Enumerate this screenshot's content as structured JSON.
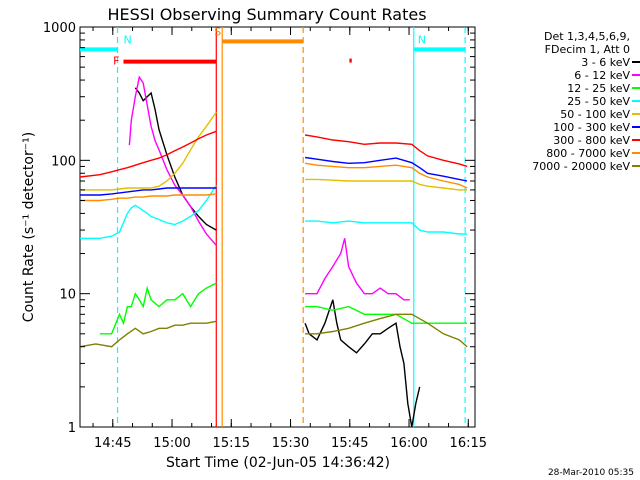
{
  "chart_data": {
    "type": "line",
    "title": "HESSI Observing Summary Count Rates",
    "xlabel": "Start Time (02-Jun-05 14:36:42)",
    "ylabel": "Count Rate (s⁻¹ detector⁻¹)",
    "yscale": "log",
    "ylim": [
      1,
      1000
    ],
    "xlim_minutes_since_start": [
      0,
      100
    ],
    "x_ticks": [
      {
        "label": "14:45",
        "minute": 8.3
      },
      {
        "label": "15:00",
        "minute": 23.3
      },
      {
        "label": "15:15",
        "minute": 38.3
      },
      {
        "label": "15:30",
        "minute": 53.3
      },
      {
        "label": "15:45",
        "minute": 68.3
      },
      {
        "label": "16:00",
        "minute": 83.3
      },
      {
        "label": "16:15",
        "minute": 98.3
      }
    ],
    "y_ticks": [
      {
        "label": "1",
        "value": 1
      },
      {
        "label": "10",
        "value": 10
      },
      {
        "label": "100",
        "value": 100
      },
      {
        "label": "1000",
        "value": 1000
      }
    ],
    "legend_header": [
      "Det 1,3,4,5,6,9,",
      "FDecim 1, Att 0"
    ],
    "series": [
      {
        "name": "3 - 6 keV",
        "color": "#000000",
        "x": [
          14,
          15,
          16,
          17,
          18,
          19,
          20,
          22,
          24,
          26,
          28,
          30,
          32,
          34.5,
          57,
          58,
          60,
          62,
          64,
          65,
          66,
          68,
          70,
          72,
          74,
          76,
          78,
          80,
          81,
          82,
          83,
          84,
          85,
          86
        ],
        "values": [
          350,
          320,
          280,
          300,
          320,
          240,
          170,
          110,
          75,
          55,
          45,
          38,
          33,
          30,
          6,
          5,
          4.5,
          6,
          9,
          6,
          4.5,
          4,
          3.6,
          4.2,
          5,
          5,
          5.5,
          6,
          4,
          3,
          1.5,
          1,
          1.5,
          2
        ]
      },
      {
        "name": "6 - 12 keV",
        "color": "#ff00ff",
        "x": [
          12.5,
          13,
          14,
          15,
          16,
          17,
          18,
          19,
          20,
          22,
          24,
          26,
          28,
          30,
          32,
          34.5,
          57,
          60,
          62,
          64,
          66,
          67,
          68,
          70,
          72,
          74,
          76,
          78,
          80,
          82,
          83.5
        ],
        "values": [
          130,
          200,
          300,
          420,
          380,
          260,
          180,
          140,
          120,
          85,
          65,
          55,
          45,
          35,
          28,
          23,
          10,
          10,
          13,
          16,
          20,
          26,
          16,
          12,
          10,
          10,
          11,
          10,
          10,
          9,
          9
        ]
      },
      {
        "name": "12 - 25 keV",
        "color": "#00ff00",
        "x": [
          5,
          8,
          10,
          11,
          12,
          13,
          14,
          15,
          16,
          17,
          18,
          20,
          22,
          24,
          26,
          28,
          30,
          32,
          34.5,
          57,
          60,
          64,
          68,
          72,
          76,
          80,
          84,
          88,
          92,
          96,
          98
        ],
        "values": [
          5,
          5,
          7,
          6,
          8,
          8,
          10,
          9,
          8,
          11,
          9,
          8,
          9,
          9,
          10,
          8,
          10,
          11,
          12,
          8,
          8,
          7.5,
          8,
          7,
          7,
          7,
          6,
          6,
          6,
          6,
          6
        ]
      },
      {
        "name": "25 - 50 keV",
        "color": "#00ffff",
        "x": [
          0,
          5,
          8,
          10,
          11,
          12,
          13,
          14,
          15,
          16,
          17,
          18,
          20,
          22,
          24,
          26,
          28,
          30,
          32,
          34.5,
          57,
          60,
          64,
          68,
          72,
          76,
          80,
          84,
          86,
          88,
          92,
          96,
          98
        ],
        "values": [
          26,
          26,
          27,
          29,
          34,
          40,
          44,
          46,
          44,
          42,
          40,
          38,
          36,
          34,
          33,
          35,
          38,
          42,
          50,
          65,
          35,
          35,
          34,
          35,
          34,
          34,
          34,
          34,
          30,
          29,
          29,
          28,
          28
        ]
      },
      {
        "name": "50 - 100 keV",
        "color": "#e0c000",
        "x": [
          0,
          5,
          8,
          10,
          12,
          14,
          16,
          18,
          20,
          22,
          24,
          26,
          28,
          30,
          32,
          34.5,
          57,
          60,
          64,
          68,
          72,
          76,
          80,
          84,
          86,
          88,
          92,
          96,
          98
        ],
        "values": [
          60,
          60,
          60,
          61,
          62,
          62,
          62,
          62,
          64,
          70,
          80,
          95,
          120,
          150,
          180,
          230,
          72,
          72,
          71,
          70,
          70,
          70,
          70,
          70,
          66,
          64,
          62,
          60,
          60
        ]
      },
      {
        "name": "100 - 300 keV",
        "color": "#0000ff",
        "x": [
          0,
          5,
          8,
          10,
          12,
          14,
          16,
          18,
          20,
          22,
          24,
          26,
          28,
          30,
          32,
          34.5,
          57,
          60,
          64,
          68,
          72,
          76,
          80,
          84,
          86,
          88,
          92,
          96,
          98
        ],
        "values": [
          55,
          55,
          56,
          57,
          58,
          59,
          60,
          60,
          61,
          62,
          62,
          62,
          62,
          62,
          62,
          62,
          105,
          102,
          98,
          95,
          96,
          100,
          104,
          96,
          88,
          80,
          76,
          72,
          70
        ]
      },
      {
        "name": "300 - 800 keV",
        "color": "#ff0000",
        "x": [
          0,
          5,
          8,
          10,
          12,
          14,
          16,
          18,
          20,
          22,
          24,
          26,
          28,
          30,
          32,
          34.5,
          57,
          60,
          64,
          68,
          72,
          76,
          80,
          84,
          86,
          88,
          92,
          96,
          98
        ],
        "values": [
          75,
          78,
          82,
          85,
          88,
          92,
          96,
          100,
          104,
          110,
          118,
          126,
          135,
          145,
          155,
          165,
          155,
          150,
          142,
          138,
          132,
          135,
          135,
          132,
          118,
          108,
          100,
          94,
          90
        ]
      },
      {
        "name": "800 - 7000 keV",
        "color": "#ff8c00",
        "x": [
          0,
          5,
          8,
          10,
          12,
          14,
          16,
          18,
          20,
          22,
          24,
          26,
          28,
          30,
          32,
          34.5,
          57,
          60,
          64,
          68,
          72,
          76,
          80,
          84,
          86,
          88,
          92,
          96,
          98
        ],
        "values": [
          50,
          50,
          51,
          52,
          52,
          53,
          53,
          54,
          54,
          54,
          55,
          55,
          55,
          55,
          55,
          56,
          95,
          92,
          90,
          88,
          88,
          90,
          92,
          88,
          80,
          75,
          70,
          66,
          62
        ]
      },
      {
        "name": "7000 - 20000 keV",
        "color": "#808000",
        "x": [
          0,
          4,
          8,
          10,
          12,
          14,
          16,
          18,
          20,
          22,
          24,
          26,
          28,
          30,
          32,
          34.5,
          57,
          60,
          64,
          68,
          72,
          76,
          80,
          84,
          88,
          92,
          96,
          98
        ],
        "values": [
          4,
          4.2,
          4,
          4.5,
          5,
          5.5,
          5,
          5.2,
          5.5,
          5.5,
          5.8,
          5.8,
          6,
          6,
          6,
          6.2,
          5,
          5,
          5.2,
          5.5,
          6,
          6.5,
          7,
          7,
          6,
          5,
          4.5,
          4
        ]
      }
    ],
    "annotations": [
      {
        "label": "F",
        "color": "#ff0000",
        "x_start": 11,
        "x_end": 34.5,
        "value": 550
      },
      {
        "label": "N",
        "color": "#00ffff",
        "x_start": 0,
        "x_end": 9.5,
        "value": 680
      },
      {
        "label": "N",
        "color": "#00ffff",
        "x_start": 84.5,
        "x_end": 97.5,
        "value": 680
      },
      {
        "label": "S",
        "color": "#ff8c00",
        "x_start": 36,
        "x_end": 56.5,
        "value": 780
      },
      {
        "label": "",
        "color": "#ff0000",
        "x_start": 68.2,
        "x_end": 68.8,
        "value": 560
      }
    ],
    "vertical_markers": [
      {
        "minute": 9.5,
        "color": "#00ffff",
        "style": "dashed"
      },
      {
        "minute": 34.5,
        "color": "#ff0000",
        "style": "solid"
      },
      {
        "minute": 36,
        "color": "#ff8c00",
        "style": "solid"
      },
      {
        "minute": 56.5,
        "color": "#ff8c00",
        "style": "dashed"
      },
      {
        "minute": 84.5,
        "color": "#00ffff",
        "style": "solid"
      },
      {
        "minute": 97.5,
        "color": "#00ffff",
        "style": "dashed"
      }
    ],
    "footer": "28-Mar-2010 05:35"
  }
}
